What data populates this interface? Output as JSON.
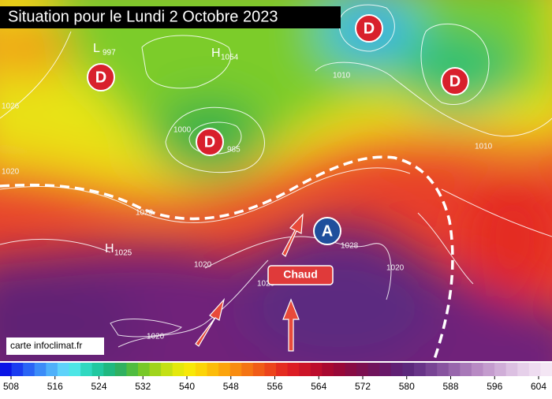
{
  "title": "Situation pour le Lundi 2 Octobre 2023",
  "credit": "carte infoclimat.fr",
  "annotation": "Chaud",
  "pressure_centers": [
    {
      "label": "D"
    },
    {
      "label": "D"
    },
    {
      "label": "D"
    },
    {
      "label": "D"
    },
    {
      "label": "A"
    }
  ],
  "extrema_labels": [
    {
      "label": "L",
      "value": 997
    },
    {
      "label": "H",
      "value": 1054
    },
    {
      "label": "H",
      "value": 1025
    }
  ],
  "isobar_labels": [
    1026,
    1020,
    1000,
    985,
    1028,
    1020,
    1020,
    1020,
    1010,
    1010,
    1020,
    1020
  ],
  "colorbar": {
    "ticks": [
      508,
      516,
      524,
      532,
      540,
      548,
      556,
      564,
      572,
      580,
      588,
      596,
      604
    ],
    "colors": [
      "#0a14e6",
      "#1a3cf0",
      "#2a64f5",
      "#3c8cf8",
      "#4fb0fa",
      "#5fd2fa",
      "#4ee6e6",
      "#30d8c0",
      "#22c8a0",
      "#20b880",
      "#30b060",
      "#50bc40",
      "#78c828",
      "#a0d41c",
      "#c4e014",
      "#e4e80c",
      "#f8e808",
      "#fcd408",
      "#fcbc0a",
      "#fca40c",
      "#f88c10",
      "#f47414",
      "#f05c18",
      "#ec441c",
      "#e42c20",
      "#dc1c24",
      "#cc1428",
      "#bc0c2c",
      "#a80830",
      "#980838",
      "#880c44",
      "#7c1050",
      "#70145c",
      "#681868",
      "#602074",
      "#5c287c",
      "#683488",
      "#784494",
      "#8854a0",
      "#9866ac",
      "#a878b8",
      "#b88ac4",
      "#c49cce",
      "#d0aed8",
      "#dcc0e2",
      "#e6d0ea",
      "#eedcf0",
      "#f4e6f4"
    ]
  }
}
